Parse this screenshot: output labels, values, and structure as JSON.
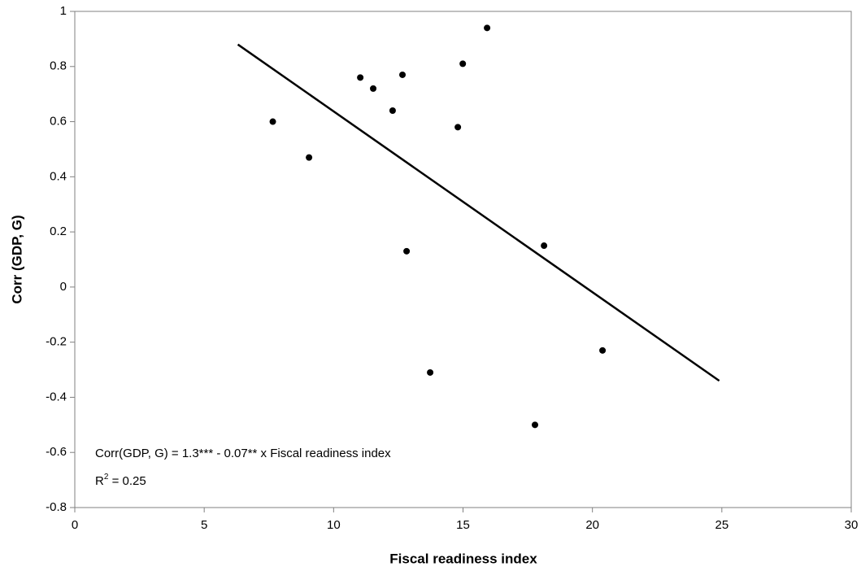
{
  "chart_data": {
    "type": "scatter",
    "x_label": "Fiscal readiness index",
    "y_label": "Corr (GDP, G)",
    "x": [
      7.65,
      9.05,
      11.03,
      11.53,
      12.28,
      12.66,
      12.82,
      13.73,
      14.8,
      14.99,
      15.93,
      17.78,
      18.13,
      20.39
    ],
    "values": [
      0.6,
      0.47,
      0.76,
      0.72,
      0.64,
      0.77,
      0.13,
      -0.31,
      0.58,
      0.81,
      0.94,
      -0.5,
      0.15,
      -0.23
    ],
    "color": "#000000",
    "trendline": {
      "x": [
        6.3,
        24.9
      ],
      "values": [
        0.88,
        -0.34
      ],
      "color": "#000000"
    },
    "annotations": [
      "Corr(GDP, G) = 1.3*** - 0.07** x Fiscal readiness index"
    ],
    "r_squared": {
      "base": "R",
      "sup": "2",
      "rest": " = 0.25"
    },
    "xlim": [
      0,
      30
    ],
    "xticks": [
      0,
      5,
      10,
      15,
      20,
      25,
      30
    ],
    "ylim": [
      -0.8,
      1
    ],
    "yticks": [
      -0.8,
      -0.6,
      -0.4,
      -0.2,
      0,
      0.2,
      0.4,
      0.6,
      0.8,
      1
    ],
    "grid": false
  }
}
